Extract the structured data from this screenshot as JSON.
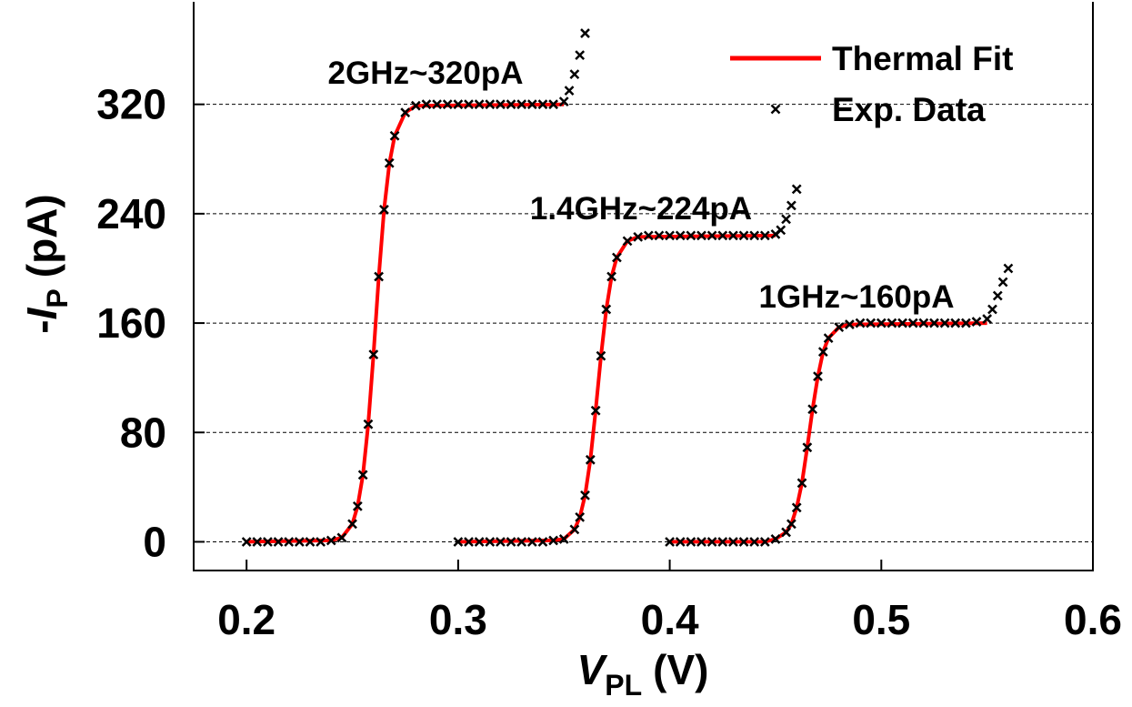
{
  "chart_data": {
    "type": "line",
    "x_label": {
      "symbol": "V",
      "subscript": "PL",
      "unit": "(V)"
    },
    "y_label": {
      "prefix": "-",
      "symbol": "I",
      "subscript": "P",
      "unit": "(pA)"
    },
    "xlim": [
      0.175,
      0.6
    ],
    "xticks": [
      0.2,
      0.3,
      0.4,
      0.5,
      0.6
    ],
    "ylim": [
      -21,
      395
    ],
    "yticks": [
      0,
      80,
      160,
      240,
      320
    ],
    "grid": true,
    "legend": "upper right",
    "annotations": [
      "2GHz~320pA",
      "1.4GHz~224pA",
      "1GHz~160pA"
    ],
    "series": [
      {
        "name": "Thermal Fit",
        "color": "#ff0000",
        "style": "line",
        "curves": [
          {
            "x": [
              0.2,
              0.24,
              0.245,
              0.25,
              0.2525,
              0.255,
              0.2575,
              0.26,
              0.2625,
              0.265,
              0.2675,
              0.27,
              0.275,
              0.28,
              0.35
            ],
            "values": [
              0,
              1,
              3,
              13,
              26,
              49,
              86,
              137,
              194,
              243,
              277,
              297,
              314,
              319,
              320
            ]
          },
          {
            "x": [
              0.3,
              0.345,
              0.35,
              0.355,
              0.3575,
              0.36,
              0.3625,
              0.365,
              0.3675,
              0.37,
              0.3725,
              0.375,
              0.38,
              0.385,
              0.45
            ],
            "values": [
              0,
              1,
              2,
              9,
              18,
              34,
              60,
              96,
              136,
              170,
              194,
              208,
              220,
              223,
              224
            ]
          },
          {
            "x": [
              0.4,
              0.445,
              0.45,
              0.455,
              0.4575,
              0.46,
              0.4625,
              0.465,
              0.4675,
              0.47,
              0.4725,
              0.475,
              0.48,
              0.485,
              0.55
            ],
            "values": [
              0,
              0,
              2,
              7,
              13,
              25,
              43,
              69,
              97,
              121,
              139,
              149,
              157,
              159,
              160
            ]
          }
        ]
      },
      {
        "name": "Exp. Data",
        "color": "#000000",
        "style": "marker",
        "curves": [
          {
            "x": [
              0.2,
              0.205,
              0.21,
              0.215,
              0.22,
              0.225,
              0.23,
              0.235,
              0.24,
              0.245,
              0.25,
              0.2525,
              0.255,
              0.2575,
              0.26,
              0.2625,
              0.265,
              0.2675,
              0.27,
              0.275,
              0.28,
              0.285,
              0.29,
              0.295,
              0.3,
              0.305,
              0.31,
              0.315,
              0.32,
              0.325,
              0.33,
              0.335,
              0.34,
              0.345,
              0.35,
              0.3525,
              0.355,
              0.3575,
              0.36
            ],
            "values": [
              0,
              0,
              0,
              0,
              0,
              0,
              0,
              0,
              1,
              3,
              13,
              26,
              49,
              86,
              137,
              194,
              243,
              277,
              297,
              314,
              319,
              320,
              320,
              320,
              320,
              320,
              320,
              320,
              320,
              320,
              320,
              320,
              320,
              320,
              322,
              330,
              342,
              356,
              372
            ]
          },
          {
            "x": [
              0.3,
              0.305,
              0.31,
              0.315,
              0.32,
              0.325,
              0.33,
              0.335,
              0.34,
              0.345,
              0.35,
              0.355,
              0.3575,
              0.36,
              0.3625,
              0.365,
              0.3675,
              0.37,
              0.3725,
              0.375,
              0.38,
              0.385,
              0.39,
              0.395,
              0.4,
              0.405,
              0.41,
              0.415,
              0.42,
              0.425,
              0.43,
              0.435,
              0.44,
              0.445,
              0.45,
              0.4525,
              0.455,
              0.4575,
              0.46
            ],
            "values": [
              0,
              0,
              0,
              0,
              0,
              0,
              0,
              0,
              0,
              1,
              2,
              9,
              18,
              34,
              60,
              96,
              136,
              170,
              194,
              208,
              220,
              223,
              224,
              224,
              224,
              224,
              224,
              224,
              224,
              224,
              224,
              224,
              224,
              224,
              225,
              228,
              236,
              246,
              258
            ]
          },
          {
            "x": [
              0.4,
              0.405,
              0.41,
              0.415,
              0.42,
              0.425,
              0.43,
              0.435,
              0.44,
              0.445,
              0.45,
              0.455,
              0.4575,
              0.46,
              0.4625,
              0.465,
              0.4675,
              0.47,
              0.4725,
              0.475,
              0.48,
              0.485,
              0.49,
              0.495,
              0.5,
              0.505,
              0.51,
              0.515,
              0.52,
              0.525,
              0.53,
              0.535,
              0.54,
              0.545,
              0.55,
              0.5525,
              0.555,
              0.5575,
              0.56
            ],
            "values": [
              0,
              0,
              0,
              0,
              0,
              0,
              0,
              0,
              0,
              0,
              2,
              7,
              13,
              25,
              43,
              69,
              97,
              121,
              139,
              149,
              157,
              159,
              160,
              160,
              160,
              160,
              160,
              160,
              160,
              160,
              160,
              160,
              160,
              161,
              163,
              170,
              180,
              190,
              200
            ]
          }
        ]
      }
    ]
  }
}
